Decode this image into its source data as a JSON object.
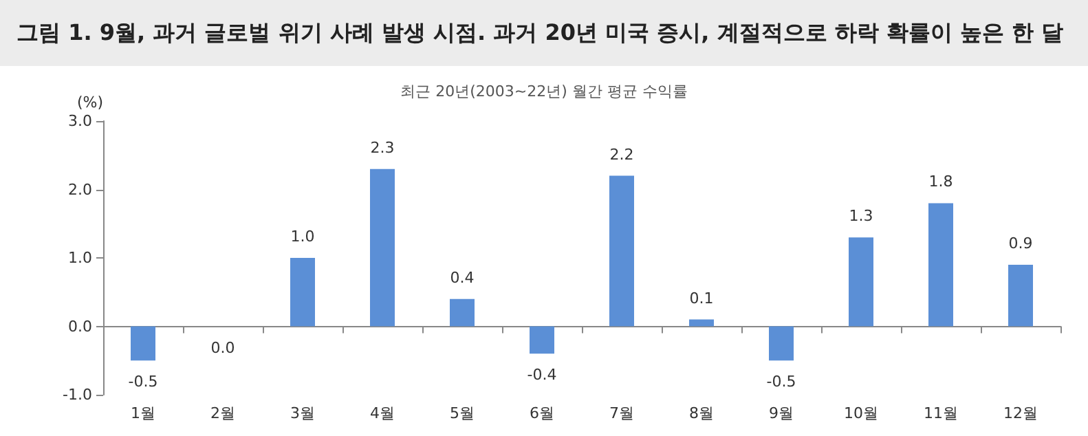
{
  "chart_data": {
    "type": "bar",
    "title": "그림 1.  9월, 과거 글로벌 위기 사례 발생 시점. 과거 20년 미국 증시, 계절적으로 하락 확률이 높은 한 달",
    "subtitle": "최근 20년(2003~22년) 월간 평균 수익률",
    "ylabel": "(%)",
    "categories": [
      "1월",
      "2월",
      "3월",
      "4월",
      "5월",
      "6월",
      "7월",
      "8월",
      "9월",
      "10월",
      "11월",
      "12월"
    ],
    "values": [
      -0.5,
      0.0,
      1.0,
      2.3,
      0.4,
      -0.4,
      2.2,
      0.1,
      -0.5,
      1.3,
      1.8,
      0.9
    ],
    "color": "#5b8fd6",
    "value_labels": [
      "-0.5",
      "0.0",
      "1.0",
      "2.3",
      "0.4",
      "-0.4",
      "2.2",
      "0.1",
      "-0.5",
      "1.3",
      "1.8",
      "0.9"
    ],
    "ylim": [
      -1,
      3
    ],
    "yticks": [
      {
        "value": -1,
        "label": "-1.0"
      },
      {
        "value": 0,
        "label": "0.0"
      },
      {
        "value": 1,
        "label": "1.0"
      },
      {
        "value": 2,
        "label": "2.0"
      },
      {
        "value": 3,
        "label": "3.0"
      }
    ]
  }
}
